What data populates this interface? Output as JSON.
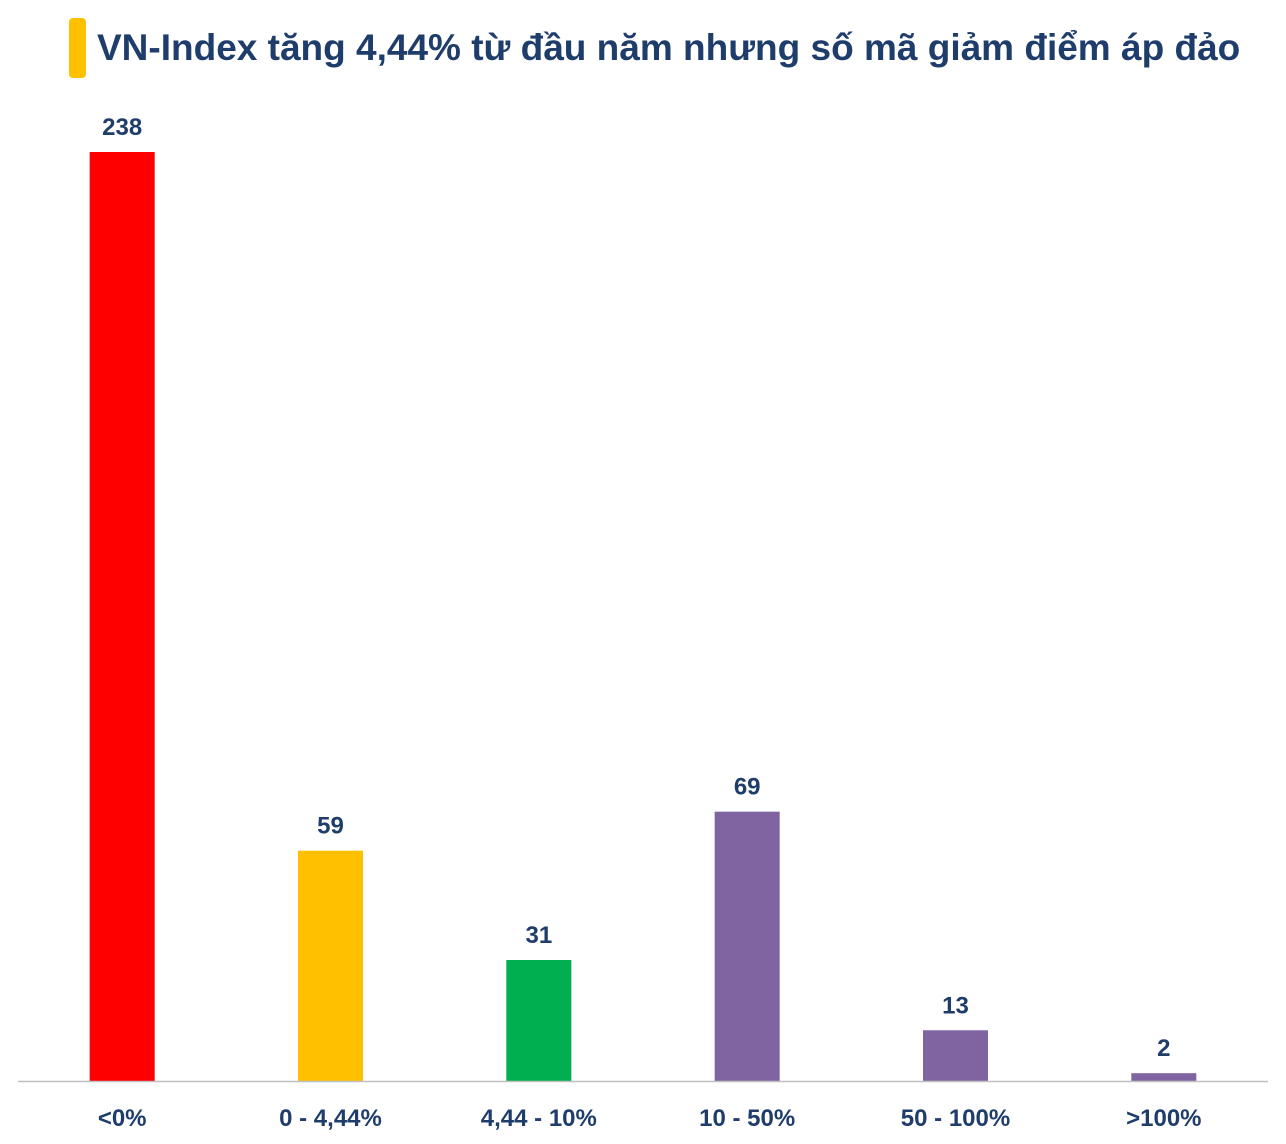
{
  "title": "VN-Index tăng 4,44% từ đầu năm nhưng số mã giảm điểm áp đảo",
  "colors": {
    "title_text": "#1f3d6b",
    "title_accent": "#ffc000",
    "labels": "#1f3d6b",
    "axis": "#bfbfbf"
  },
  "chart_data": {
    "type": "bar",
    "categories": [
      "<0%",
      "0 - 4,44%",
      "4,44 - 10%",
      "10 - 50%",
      "50 - 100%",
      ">100%"
    ],
    "values": [
      238,
      59,
      31,
      69,
      13,
      2
    ],
    "value_labels": [
      "238",
      "59",
      "31",
      "69",
      "13",
      "2"
    ],
    "bar_colors": [
      "#ff0000",
      "#ffc000",
      "#00b050",
      "#8064a2",
      "#8064a2",
      "#8064a2"
    ],
    "ylim": [
      0,
      238
    ],
    "grid": false,
    "legend": "none"
  }
}
